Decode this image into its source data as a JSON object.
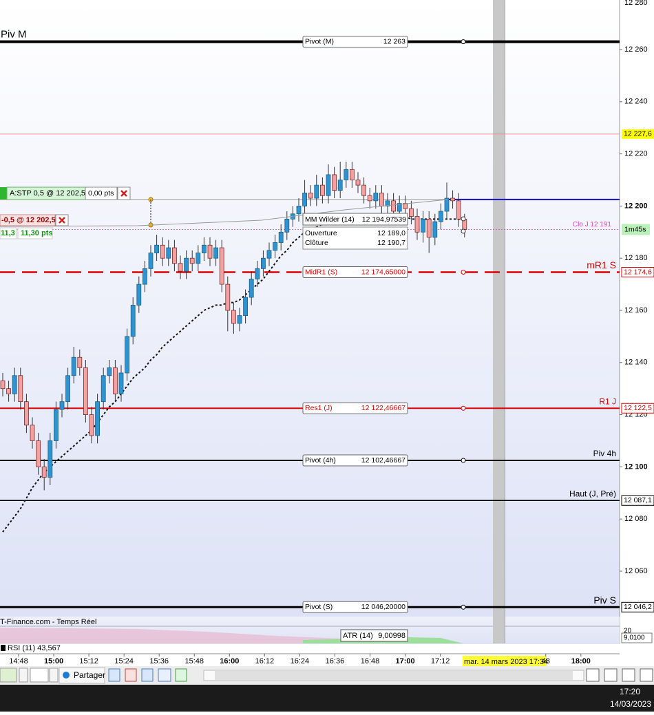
{
  "chart_data": {
    "type": "candlestick",
    "open": [
      12133,
      12130,
      12128,
      12135,
      12125,
      12116,
      12110,
      12100,
      12096,
      12110,
      12122,
      12125,
      12135,
      12142,
      12138,
      12120,
      12112,
      12125,
      12135,
      12138,
      12128,
      12136,
      12150,
      12162,
      12170,
      12176,
      12182,
      12185,
      12180,
      12184,
      12178,
      12175,
      12180,
      12178,
      12182,
      12185,
      12180,
      12184,
      12170,
      12160,
      12155,
      12158,
      12165,
      12172,
      12176,
      12180,
      12183,
      12186,
      12190,
      12195,
      12197,
      12200,
      12205,
      12203,
      12208,
      12204,
      12212,
      12206,
      12210,
      12214,
      12210,
      12208,
      12204,
      12202,
      12205,
      12200,
      12202,
      12198,
      12201,
      12199,
      12196,
      12190,
      12195,
      12188,
      12194,
      12198,
      12203,
      12202,
      12195
    ],
    "high": [
      12136,
      12133,
      12138,
      12138,
      12128,
      12119,
      12113,
      12103,
      12113,
      12125,
      12128,
      12138,
      12146,
      12145,
      12141,
      12123,
      12128,
      12138,
      12141,
      12141,
      12139,
      12153,
      12165,
      12173,
      12179,
      12185,
      12189,
      12188,
      12187,
      12187,
      12181,
      12183,
      12183,
      12185,
      12188,
      12188,
      12187,
      12187,
      12173,
      12163,
      12161,
      12168,
      12175,
      12179,
      12183,
      12186,
      12189,
      12193,
      12198,
      12200,
      12203,
      12210,
      12208,
      12212,
      12211,
      12216,
      12215,
      12217,
      12217,
      12217,
      12213,
      12211,
      12207,
      12208,
      12208,
      12205,
      12205,
      12204,
      12204,
      12202,
      12199,
      12198,
      12198,
      12197,
      12201,
      12209,
      12206,
      12205,
      12197
    ],
    "low": [
      12127,
      12125,
      12125,
      12122,
      12113,
      12107,
      12097,
      12091,
      12093,
      12107,
      12119,
      12122,
      12132,
      12135,
      12117,
      12109,
      12109,
      12122,
      12132,
      12125,
      12125,
      12133,
      12147,
      12159,
      12167,
      12173,
      12179,
      12177,
      12177,
      12175,
      12172,
      12172,
      12175,
      12175,
      12179,
      12177,
      12177,
      12167,
      12152,
      12151,
      12152,
      12155,
      12162,
      12169,
      12173,
      12177,
      12180,
      12183,
      12187,
      12192,
      12194,
      12197,
      12200,
      12200,
      12201,
      12201,
      12203,
      12203,
      12207,
      12207,
      12205,
      12201,
      12199,
      12199,
      12197,
      12197,
      12195,
      12195,
      12196,
      12193,
      12187,
      12186,
      12182,
      12185,
      12191,
      12195,
      12199,
      12192,
      12188
    ],
    "close": [
      12130,
      12128,
      12135,
      12125,
      12116,
      12110,
      12100,
      12096,
      12110,
      12122,
      12125,
      12135,
      12142,
      12138,
      12120,
      12112,
      12125,
      12135,
      12138,
      12128,
      12136,
      12150,
      12162,
      12170,
      12176,
      12182,
      12185,
      12180,
      12184,
      12178,
      12175,
      12180,
      12178,
      12182,
      12185,
      12180,
      12184,
      12170,
      12160,
      12155,
      12158,
      12165,
      12172,
      12176,
      12180,
      12183,
      12186,
      12190,
      12195,
      12197,
      12200,
      12205,
      12203,
      12208,
      12204,
      12212,
      12206,
      12210,
      12214,
      12210,
      12208,
      12204,
      12202,
      12205,
      12200,
      12202,
      12198,
      12201,
      12199,
      12196,
      12190,
      12195,
      12188,
      12194,
      12198,
      12203,
      12202,
      12195,
      12191
    ],
    "ma_wilder": [
      12075,
      12078,
      12081,
      12084,
      12088,
      12092,
      12095,
      12098,
      12100,
      12102,
      12104,
      12106,
      12108,
      12110,
      12112,
      12114,
      12117,
      12120,
      12123,
      12125,
      12128,
      12131,
      12134,
      12136,
      12138,
      12141,
      12143,
      12146,
      12148,
      12150,
      12152,
      12154,
      12156,
      12158,
      12160,
      12161,
      12162,
      12162,
      12163,
      12163,
      12164,
      12166,
      12168,
      12170,
      12172,
      12175,
      12178,
      12181,
      12183,
      12186,
      12188,
      12190,
      12191,
      12192,
      12193,
      12194,
      12195,
      12195,
      12195,
      12196,
      12196,
      12196,
      12196,
      12196,
      12196,
      12196,
      12196,
      12196,
      12196,
      12195,
      12195,
      12195,
      12195,
      12195,
      12195,
      12195,
      12195,
      12195,
      12195
    ],
    "bull_color": "#2f93cf",
    "bear_color": "#f2a0a0",
    "ylim": [
      12040,
      12280
    ],
    "yticks": [
      {
        "value": 12280,
        "label": "12 280"
      },
      {
        "value": 12260,
        "label": "12 260"
      },
      {
        "value": 12240,
        "label": "12 240"
      },
      {
        "value": 12220,
        "label": "12 220"
      },
      {
        "value": 12200,
        "label": "12 200"
      },
      {
        "value": 12180,
        "label": "12 180"
      },
      {
        "value": 12160,
        "label": "12 160"
      },
      {
        "value": 12140,
        "label": "12 140"
      },
      {
        "value": 12120,
        "label": "12 120"
      },
      {
        "value": 12100,
        "label": "12 100"
      },
      {
        "value": 12080,
        "label": "12 080"
      },
      {
        "value": 12060,
        "label": "12 060"
      }
    ],
    "time_labels": [
      "14:48",
      "15:00",
      "15:12",
      "15:24",
      "15:36",
      "15:48",
      "16:00",
      "16:12",
      "16:24",
      "16:36",
      "16:48",
      "17:00",
      "17:12",
      "48",
      "18:00"
    ],
    "levels": [
      {
        "name": "Pivot (M)",
        "value": 12263,
        "value_label": "12 263",
        "side_label": "Piv M",
        "side_label_position": "left",
        "color": "#000000",
        "width": 4,
        "dashed": false
      },
      {
        "name": "MidR1 (S)",
        "value": 12174.65,
        "value_label": "12 174,65000",
        "side_label": "mR1 S",
        "side_label_position": "right",
        "tag": "12 174,6",
        "color": "#e00000",
        "width": 2.5,
        "dashed": true
      },
      {
        "name": "Res1 (J)",
        "value": 12122.46667,
        "value_label": "12 122,46667",
        "side_label": "R1 J",
        "side_label_position": "right",
        "tag": "12 122,5",
        "color": "#e00000",
        "width": 2,
        "dashed": false
      },
      {
        "name": "Pivot (4h)",
        "value": 12102.46667,
        "value_label": "12 102,46667",
        "side_label": "Piv 4h",
        "side_label_position": "right",
        "color": "#000000",
        "width": 2,
        "dashed": false
      },
      {
        "side_label": "Haut (J, Pré)",
        "value": 12087.1,
        "side_label_position": "right",
        "tag": "12 087,1",
        "color": "#000000",
        "width": 1.5,
        "dashed": false
      },
      {
        "name": "Pivot (S)",
        "value": 12046.2,
        "value_label": "12 046,20000",
        "side_label": "Piv S",
        "side_label_position": "right",
        "tag": "12 046,2",
        "color": "#000000",
        "width": 3,
        "dashed": false
      }
    ],
    "alert_line": {
      "value": 12227.6,
      "tag": "12 227,6",
      "color": "#e88080"
    },
    "close_line": {
      "value": 12191,
      "label": "Clo J 12 191",
      "tag": "1m45s",
      "color": "#e040c0"
    },
    "order": {
      "value": 12202.5,
      "label": "A:STP 0,5 @ 12 202,5",
      "pts": "0,00 pts",
      "position_label": "-0,5 @ 12 202,5",
      "gain": "11,3",
      "gain_pts": "11,30 pts"
    },
    "info": {
      "ma_label": "MM Wilder (14)",
      "ma_value": "12 194,97539",
      "open_label": "Ouverture",
      "open_value": "12 189,0",
      "close_label": "Clôture",
      "close_value": "12 190,7"
    }
  },
  "indicators": {
    "source": "T-Finance.com - Temps Réel",
    "rsi": "RSI (11) 43,567",
    "atr_label": "ATR (14)",
    "atr_value": "9,00998",
    "atr_tag": "9,0100",
    "rsi_tick": "20"
  },
  "cursor_date": "mar. 14 mars 2023 17:34",
  "toolbar": {
    "share": "Partager"
  },
  "taskbar": {
    "time": "17:20",
    "date": "14/03/2023"
  }
}
